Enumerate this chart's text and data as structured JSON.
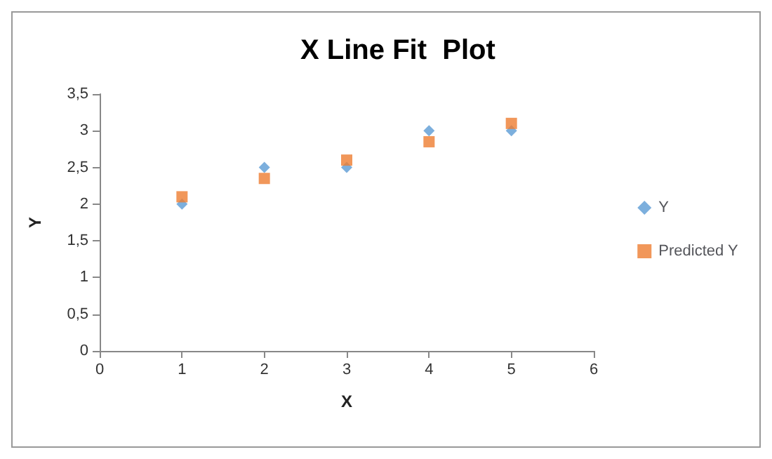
{
  "chart_data": {
    "type": "scatter",
    "title": "X Line Fit  Plot",
    "xlabel": "X",
    "ylabel": "Y",
    "x": [
      1,
      2,
      3,
      4,
      5
    ],
    "series": [
      {
        "name": "Y",
        "color": "#5b9bd5",
        "marker": "diamond",
        "values": [
          2,
          2.5,
          2.5,
          3,
          3
        ]
      },
      {
        "name": "Predicted Y",
        "color": "#ed7d31",
        "marker": "square",
        "values": [
          2.1,
          2.35,
          2.6,
          2.85,
          3.1
        ]
      }
    ],
    "xlim": [
      0,
      6
    ],
    "xticks": [
      0,
      1,
      2,
      3,
      4,
      5,
      6
    ],
    "ylim": [
      0,
      3.5
    ],
    "yticks": [
      0,
      {
        "value": 0.5,
        "label": "0,5"
      },
      1,
      {
        "value": 1.5,
        "label": "1,5"
      },
      2,
      {
        "value": 2.5,
        "label": "2,5"
      },
      3,
      {
        "value": 3.5,
        "label": "3,5"
      }
    ],
    "grid": false,
    "legend": "right"
  }
}
